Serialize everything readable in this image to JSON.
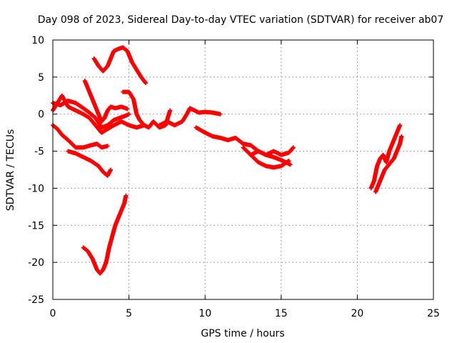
{
  "chart_data": {
    "type": "scatter",
    "title": "Day 098 of 2023, Sidereal Day-to-day VTEC variation (SDTVAR) for receiver ab07",
    "xlabel": "GPS time / hours",
    "ylabel": "SDTVAR / TECUs",
    "xlim": [
      0,
      25
    ],
    "ylim": [
      -25,
      10
    ],
    "xticks": [
      "0",
      "5",
      "10",
      "15",
      "20",
      "25"
    ],
    "yticks": [
      "-25",
      "-20",
      "-15",
      "-10",
      "-5",
      "0",
      "5",
      "10"
    ],
    "grid": true,
    "legend": "none",
    "marker": "plus",
    "color": "#ff0000",
    "series": [
      {
        "x": [
          0,
          0.5,
          1.0,
          1.5,
          2.0,
          2.4,
          2.8,
          3.2,
          3.6,
          4.0,
          4.4,
          4.8,
          5.0
        ],
        "y": [
          1.5,
          1.2,
          1.8,
          1.5,
          0.8,
          0.2,
          -0.5,
          -1.8,
          -1.5,
          -0.8,
          -0.5,
          -0.2,
          0
        ]
      },
      {
        "x": [
          0,
          0.3,
          0.6,
          1.0,
          1.5,
          2.0,
          2.4,
          2.8,
          3.2,
          3.6,
          4.0,
          4.5,
          5.0,
          5.5,
          6.0
        ],
        "y": [
          0.5,
          1.5,
          2.5,
          1.0,
          0.5,
          0.0,
          -0.5,
          -1.5,
          -2.5,
          -2.0,
          -1.5,
          -1.0,
          -1.5,
          -1.8,
          -1.5
        ]
      },
      {
        "x": [
          0,
          0.3,
          0.6,
          1.0,
          1.5,
          2.0,
          2.5,
          2.9,
          3.2,
          3.6
        ],
        "y": [
          -1.5,
          -2.0,
          -2.8,
          -3.5,
          -4.5,
          -4.5,
          -4.2,
          -4.0,
          -4.5,
          -4.3
        ]
      },
      {
        "x": [
          1.0,
          1.5,
          2.0,
          2.5,
          3.0,
          3.3,
          3.6,
          3.8
        ],
        "y": [
          -5.0,
          -5.3,
          -5.8,
          -6.3,
          -7.0,
          -7.8,
          -8.3,
          -7.5
        ]
      },
      {
        "x": [
          2.1,
          2.4,
          2.7,
          3.0,
          3.2,
          3.4,
          3.6,
          3.8,
          4.1,
          4.5,
          4.9
        ],
        "y": [
          4.5,
          3.0,
          1.5,
          0,
          -1,
          -0.5,
          0.5,
          1.0,
          0.8,
          1.0,
          0.7
        ]
      },
      {
        "x": [
          2.7,
          3.0,
          3.3,
          3.6,
          3.8,
          4.0,
          4.3,
          4.6,
          4.9,
          5.2,
          5.5,
          5.8,
          6.1
        ],
        "y": [
          7.5,
          6.5,
          5.8,
          6.5,
          7.5,
          8.5,
          8.8,
          9.0,
          8.5,
          7.0,
          6.0,
          5.0,
          4.2
        ]
      },
      {
        "x": [
          4.6,
          5.0,
          5.3,
          5.5,
          5.7,
          6.0,
          6.3,
          6.6,
          7.0,
          7.4,
          7.7
        ],
        "y": [
          3.0,
          3.0,
          2.0,
          0.0,
          -0.8,
          -1.5,
          -1.8,
          -1.0,
          -1.8,
          -1.5,
          0.5
        ]
      },
      {
        "x": [
          7.0,
          7.5,
          8.0,
          8.5,
          8.8,
          9.0,
          9.3,
          9.6,
          10.0,
          10.5,
          11.0
        ],
        "y": [
          -1.5,
          -1.0,
          -1.5,
          -1.0,
          0.0,
          0.8,
          0.5,
          0.2,
          0.3,
          0.2,
          0.0
        ]
      },
      {
        "x": [
          9.4,
          10.0,
          10.5,
          11.0,
          11.5,
          12.0,
          12.5,
          13.0,
          13.5,
          14.0,
          14.5,
          15.0,
          15.3,
          15.6
        ],
        "y": [
          -1.8,
          -2.5,
          -3.0,
          -3.2,
          -3.5,
          -3.2,
          -4.0,
          -4.2,
          -5.0,
          -5.5,
          -5.8,
          -6.2,
          -6.5,
          -6.8
        ]
      },
      {
        "x": [
          12.5,
          13.0,
          13.5,
          14.0,
          14.5,
          15.0,
          15.5
        ],
        "y": [
          -4.5,
          -5.5,
          -6.5,
          -7.0,
          -7.2,
          -7.0,
          -6.3
        ]
      },
      {
        "x": [
          13.0,
          13.5,
          14.0,
          14.5,
          15.0,
          15.5,
          15.8
        ],
        "y": [
          -5.5,
          -5.0,
          -5.5,
          -5.0,
          -5.5,
          -5.2,
          -4.5
        ]
      },
      {
        "x": [
          2.0,
          2.3,
          2.6,
          2.9,
          3.1,
          3.3,
          3.5,
          3.7,
          3.9,
          4.1,
          4.3,
          4.5,
          4.7,
          4.8
        ],
        "y": [
          -18.0,
          -18.5,
          -19.5,
          -21.0,
          -21.5,
          -21.0,
          -20.0,
          -18.0,
          -16.5,
          -15.0,
          -14.0,
          -13.0,
          -12.0,
          -11.0
        ]
      },
      {
        "x": [
          20.9,
          21.1,
          21.3,
          21.5,
          21.7,
          21.9,
          22.1,
          22.3,
          22.5,
          22.7,
          22.8
        ],
        "y": [
          -10.0,
          -9.0,
          -7.0,
          -6.0,
          -5.5,
          -6.5,
          -5.0,
          -4.0,
          -3.0,
          -2.0,
          -1.5
        ]
      },
      {
        "x": [
          21.2,
          21.4,
          21.6,
          21.8,
          22.0,
          22.2,
          22.4,
          22.6,
          22.8,
          22.9
        ],
        "y": [
          -10.5,
          -9.5,
          -8.5,
          -7.5,
          -7.0,
          -6.5,
          -6.0,
          -5.0,
          -4.0,
          -3.0
        ]
      }
    ]
  }
}
